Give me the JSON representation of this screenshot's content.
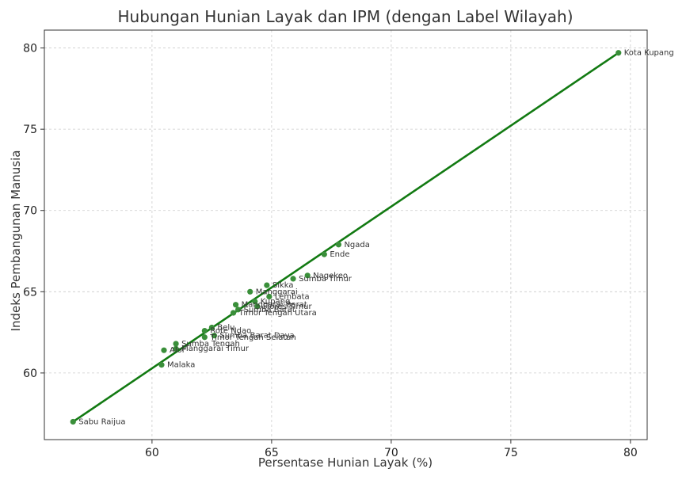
{
  "chart_data": {
    "type": "scatter",
    "title": "Hubungan Hunian Layak dan IPM (dengan Label Wilayah)",
    "xlabel": "Persentase Hunian Layak (%)",
    "ylabel": "Indeks Pembangunan Manusia",
    "xlim": [
      55.5,
      80.7
    ],
    "ylim": [
      55.9,
      81.1
    ],
    "xticks": [
      60,
      65,
      70,
      75,
      80
    ],
    "yticks": [
      60,
      65,
      70,
      75,
      80
    ],
    "grid": true,
    "point_color": "#3a8f3a",
    "line_color": "#127a12",
    "points": [
      {
        "label": "Kota Kupang",
        "x": 79.5,
        "y": 79.7
      },
      {
        "label": "Ngada",
        "x": 67.8,
        "y": 67.9
      },
      {
        "label": "Ende",
        "x": 67.2,
        "y": 67.3
      },
      {
        "label": "Nagekeo",
        "x": 66.5,
        "y": 66.0
      },
      {
        "label": "Sumba Timur",
        "x": 65.9,
        "y": 65.8
      },
      {
        "label": "Sikka",
        "x": 64.8,
        "y": 65.4
      },
      {
        "label": "Manggarai",
        "x": 64.1,
        "y": 65.0
      },
      {
        "label": "Lembata",
        "x": 64.9,
        "y": 64.7
      },
      {
        "label": "Kupang",
        "x": 64.3,
        "y": 64.4
      },
      {
        "label": "Manggarai Barat",
        "x": 63.5,
        "y": 64.2
      },
      {
        "label": "Flores Timur",
        "x": 64.4,
        "y": 64.1
      },
      {
        "label": "Sumba Barat",
        "x": 63.6,
        "y": 63.9
      },
      {
        "label": "Timor Tengah Utara",
        "x": 63.4,
        "y": 63.7
      },
      {
        "label": "Belu",
        "x": 62.5,
        "y": 62.8
      },
      {
        "label": "Rote Ndao",
        "x": 62.2,
        "y": 62.6
      },
      {
        "label": "Sumba Barat Daya",
        "x": 62.6,
        "y": 62.3
      },
      {
        "label": "Timor Tengah Selatan",
        "x": 62.2,
        "y": 62.2
      },
      {
        "label": "Sumba Tengah",
        "x": 61.0,
        "y": 61.8
      },
      {
        "label": "Manggarai Timur",
        "x": 61.0,
        "y": 61.5
      },
      {
        "label": "Alor",
        "x": 60.5,
        "y": 61.4
      },
      {
        "label": "Malaka",
        "x": 60.4,
        "y": 60.5
      },
      {
        "label": "Sabu Raijua",
        "x": 56.7,
        "y": 57.0
      }
    ],
    "regression_line": {
      "x": [
        56.7,
        79.5
      ],
      "y": [
        57.0,
        79.7
      ]
    }
  }
}
